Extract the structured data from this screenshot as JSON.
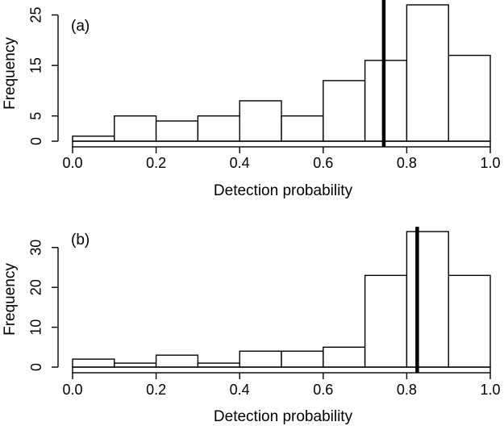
{
  "chart_data": [
    {
      "type": "histogram",
      "panel_label": "(a)",
      "xlabel": "Detection probability",
      "ylabel": "Frequency",
      "xlim": [
        0,
        1
      ],
      "ylim": [
        0,
        27
      ],
      "x_ticks": [
        "0.0",
        "0.2",
        "0.4",
        "0.6",
        "0.8",
        "1.0"
      ],
      "x_tick_values": [
        0,
        0.2,
        0.4,
        0.6,
        0.8,
        1.0
      ],
      "y_ticks": [
        "0",
        "5",
        "15",
        "25"
      ],
      "y_tick_values": [
        0,
        5,
        15,
        25
      ],
      "bin_edges": [
        0,
        0.1,
        0.2,
        0.3,
        0.4,
        0.5,
        0.6,
        0.7,
        0.8,
        0.9,
        1.0
      ],
      "values": [
        1,
        5,
        4,
        5,
        8,
        5,
        12,
        16,
        27,
        17
      ],
      "reference_line_x": 0.745,
      "grid": false,
      "bar_color": "#ffffff",
      "line_color": "#000000"
    },
    {
      "type": "histogram",
      "panel_label": "(b)",
      "xlabel": "Detection probability",
      "ylabel": "Frequency",
      "xlim": [
        0,
        1
      ],
      "ylim": [
        0,
        34
      ],
      "x_ticks": [
        "0.0",
        "0.2",
        "0.4",
        "0.6",
        "0.8",
        "1.0"
      ],
      "x_tick_values": [
        0,
        0.2,
        0.4,
        0.6,
        0.8,
        1.0
      ],
      "y_ticks": [
        "0",
        "10",
        "20",
        "30"
      ],
      "y_tick_values": [
        0,
        10,
        20,
        30
      ],
      "bin_edges": [
        0,
        0.1,
        0.2,
        0.3,
        0.4,
        0.5,
        0.6,
        0.7,
        0.8,
        0.9,
        1.0
      ],
      "values": [
        2,
        1,
        3,
        1,
        4,
        4,
        5,
        23,
        34,
        23
      ],
      "reference_line_x": 0.825,
      "grid": false,
      "bar_color": "#ffffff",
      "line_color": "#000000"
    }
  ]
}
